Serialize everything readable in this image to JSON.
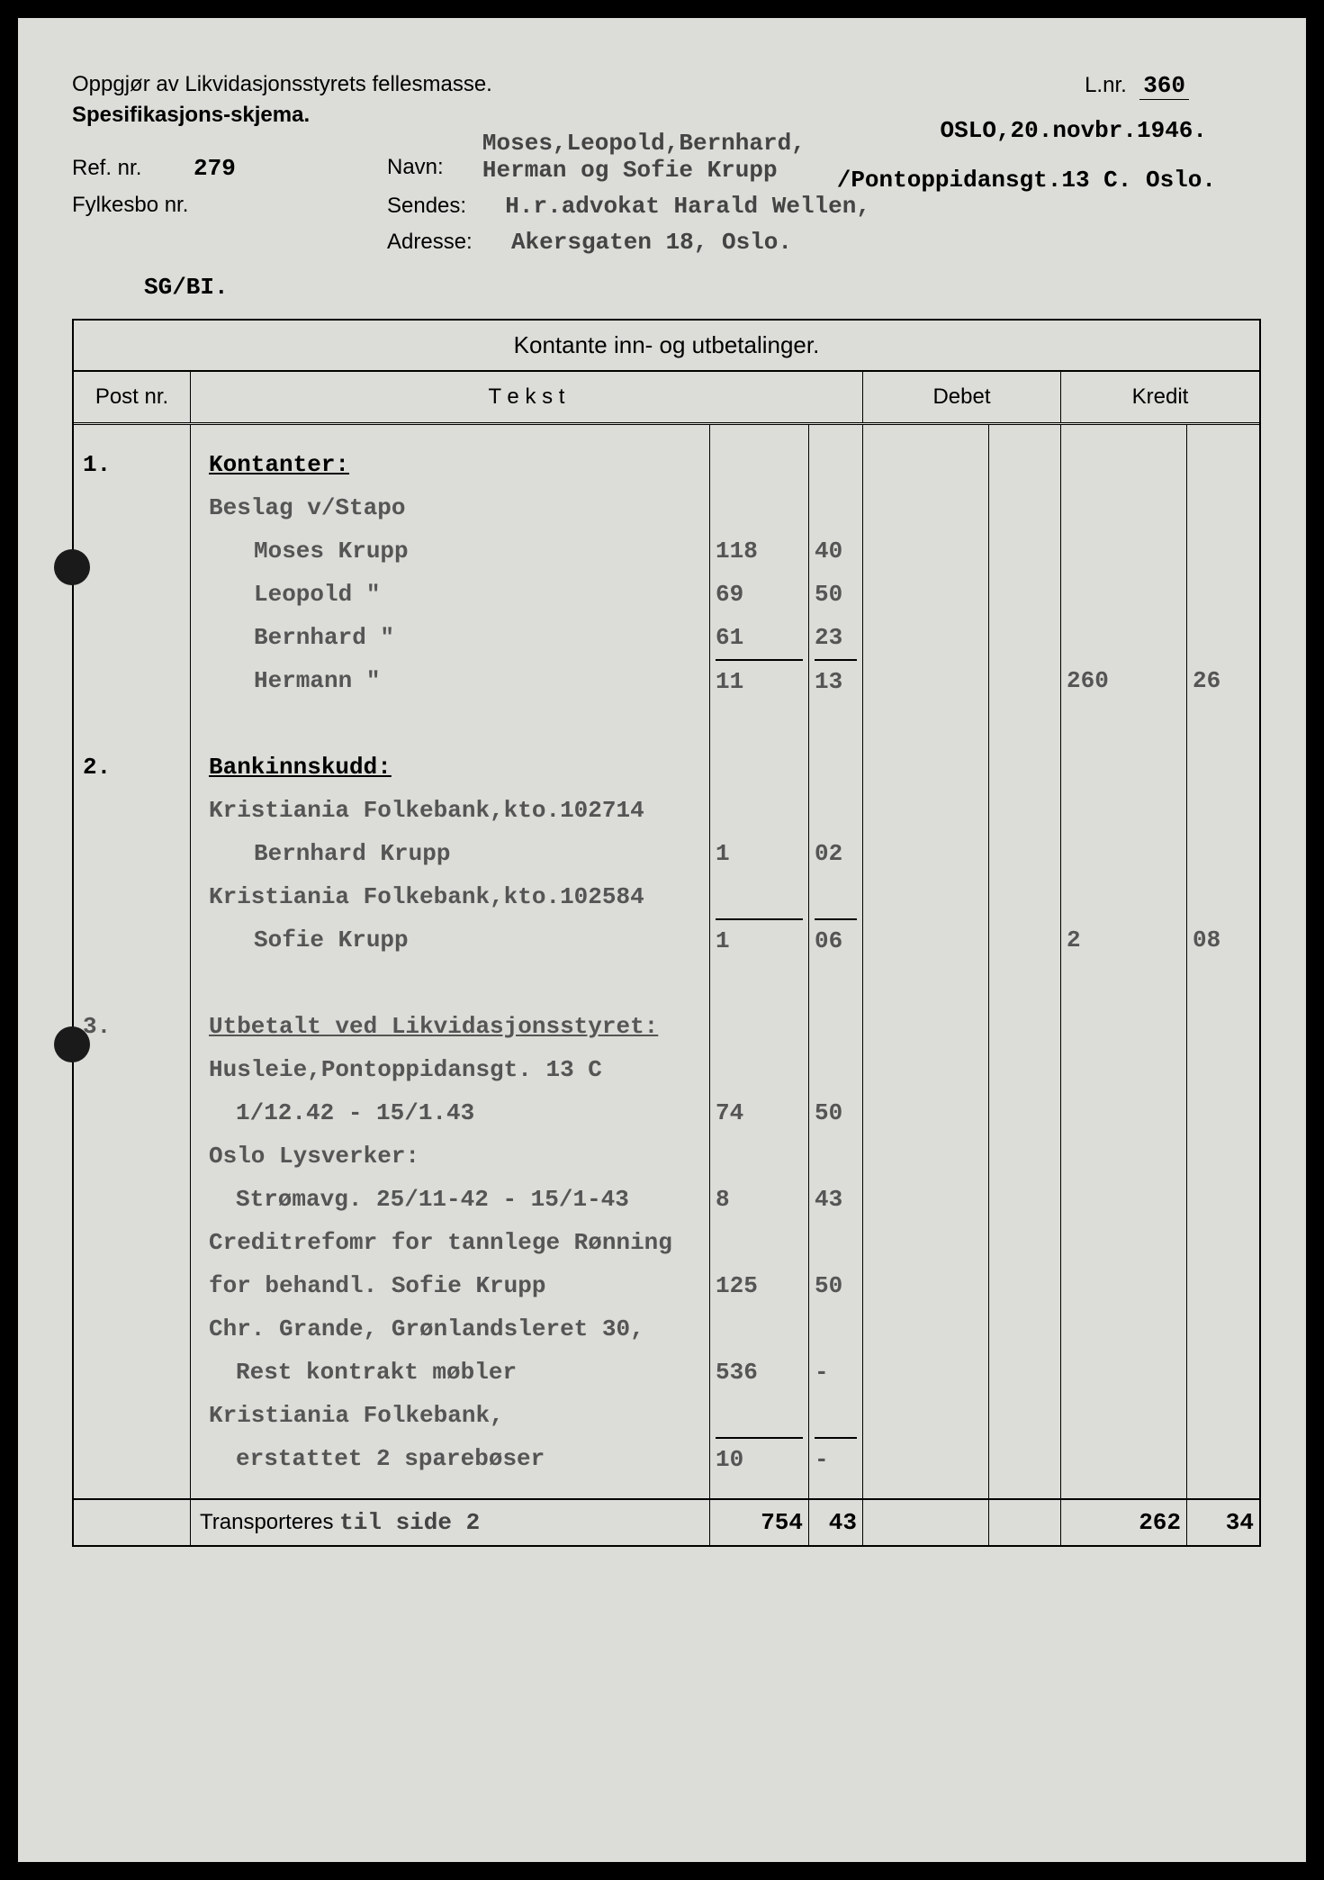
{
  "header": {
    "title1": "Oppgjør av Likvidasjonsstyrets fellesmasse.",
    "title2": "Spesifikasjons-skjema.",
    "lnr_label": "L.nr.",
    "lnr_value": "360",
    "date_location": "OSLO,20.novbr.1946.",
    "ref_label": "Ref. nr.",
    "ref_value": "279",
    "fylkesbo_label": "Fylkesbo nr.",
    "navn_label": "Navn:",
    "navn_value1": "Moses,Leopold,Bernhard,",
    "navn_value2": "Herman og Sofie Krupp",
    "addr_right": "/Pontoppidansgt.13 C. Oslo.",
    "sendes_label": "Sendes:",
    "sendes_value": "H.r.advokat Harald Wellen,",
    "adresse_label": "Adresse:",
    "adresse_value": "Akersgaten 18, Oslo.",
    "sg": "SG/BI."
  },
  "ledger": {
    "title": "Kontante inn- og utbetalinger.",
    "col_post": "Post nr.",
    "col_tekst": "T e k s t",
    "col_debet": "Debet",
    "col_kredit": "Kredit",
    "transport_label": "Transporteres",
    "transport_note": "til side 2",
    "transport_debet_main": "754",
    "transport_debet_sub": "43",
    "transport_kredit_main": "262",
    "transport_kredit_sub": "34"
  },
  "rows": [
    {
      "post": "1.",
      "tekst": "Kontanter:",
      "n1": "",
      "n2": "",
      "k1": "",
      "k2": "",
      "style": "section"
    },
    {
      "post": "",
      "tekst": "Beslag v/Stapo",
      "n1": "",
      "n2": "",
      "k1": "",
      "k2": "",
      "style": "faded"
    },
    {
      "post": "",
      "tekst": "Moses Krupp",
      "n1": "118",
      "n2": "40",
      "k1": "",
      "k2": "",
      "style": "indent2 faded"
    },
    {
      "post": "",
      "tekst": "Leopold  \"",
      "n1": "69",
      "n2": "50",
      "k1": "",
      "k2": "",
      "style": "indent2 faded"
    },
    {
      "post": "",
      "tekst": "Bernhard \"",
      "n1": "61",
      "n2": "23",
      "k1": "",
      "k2": "",
      "style": "indent2 faded"
    },
    {
      "post": "",
      "tekst": "Hermann  \"",
      "n1": "11",
      "n2": "13",
      "k1": "260",
      "k2": "26",
      "style": "indent2 faded sumline"
    },
    {
      "post": "",
      "tekst": "",
      "n1": "",
      "n2": "",
      "k1": "",
      "k2": "",
      "style": "blank"
    },
    {
      "post": "2.",
      "tekst": "Bankinnskudd:",
      "n1": "",
      "n2": "",
      "k1": "",
      "k2": "",
      "style": "section"
    },
    {
      "post": "",
      "tekst": "Kristiania Folkebank,kto.102714",
      "n1": "",
      "n2": "",
      "k1": "",
      "k2": "",
      "style": "faded"
    },
    {
      "post": "",
      "tekst": "Bernhard Krupp",
      "n1": "1",
      "n2": "02",
      "k1": "",
      "k2": "",
      "style": "indent2 faded"
    },
    {
      "post": "",
      "tekst": "Kristiania Folkebank,kto.102584",
      "n1": "",
      "n2": "",
      "k1": "",
      "k2": "",
      "style": "faded"
    },
    {
      "post": "",
      "tekst": "Sofie Krupp",
      "n1": "1",
      "n2": "06",
      "k1": "2",
      "k2": "08",
      "style": "indent2 faded sumline"
    },
    {
      "post": "",
      "tekst": "",
      "n1": "",
      "n2": "",
      "k1": "",
      "k2": "",
      "style": "blank"
    },
    {
      "post": "3.",
      "tekst": "Utbetalt ved Likvidasjonsstyret:",
      "n1": "",
      "n2": "",
      "k1": "",
      "k2": "",
      "style": "section faded"
    },
    {
      "post": "",
      "tekst": "Husleie,Pontoppidansgt. 13 C",
      "n1": "",
      "n2": "",
      "k1": "",
      "k2": "",
      "style": "faded"
    },
    {
      "post": "",
      "tekst": "1/12.42 - 15/1.43",
      "n1": "74",
      "n2": "50",
      "k1": "",
      "k2": "",
      "style": "indent1 faded"
    },
    {
      "post": "",
      "tekst": "Oslo Lysverker:",
      "n1": "",
      "n2": "",
      "k1": "",
      "k2": "",
      "style": "faded"
    },
    {
      "post": "",
      "tekst": "Strømavg. 25/11-42 - 15/1-43",
      "n1": "8",
      "n2": "43",
      "k1": "",
      "k2": "",
      "style": "indent1 faded"
    },
    {
      "post": "",
      "tekst": "Creditrefomr for tannlege Rønning",
      "n1": "",
      "n2": "",
      "k1": "",
      "k2": "",
      "style": "faded"
    },
    {
      "post": "",
      "tekst": "for behandl. Sofie Krupp",
      "n1": "125",
      "n2": "50",
      "k1": "",
      "k2": "",
      "style": "faded"
    },
    {
      "post": "",
      "tekst": "Chr. Grande, Grønlandsleret 30,",
      "n1": "",
      "n2": "",
      "k1": "",
      "k2": "",
      "style": "faded"
    },
    {
      "post": "",
      "tekst": "Rest kontrakt møbler",
      "n1": "536",
      "n2": "-",
      "k1": "",
      "k2": "",
      "style": "indent1 faded"
    },
    {
      "post": "",
      "tekst": "Kristiania Folkebank,",
      "n1": "",
      "n2": "",
      "k1": "",
      "k2": "",
      "style": "faded"
    },
    {
      "post": "",
      "tekst": "erstattet 2 sparebøser",
      "n1": "10",
      "n2": "-",
      "k1": "",
      "k2": "",
      "style": "indent1 faded sumline"
    }
  ]
}
